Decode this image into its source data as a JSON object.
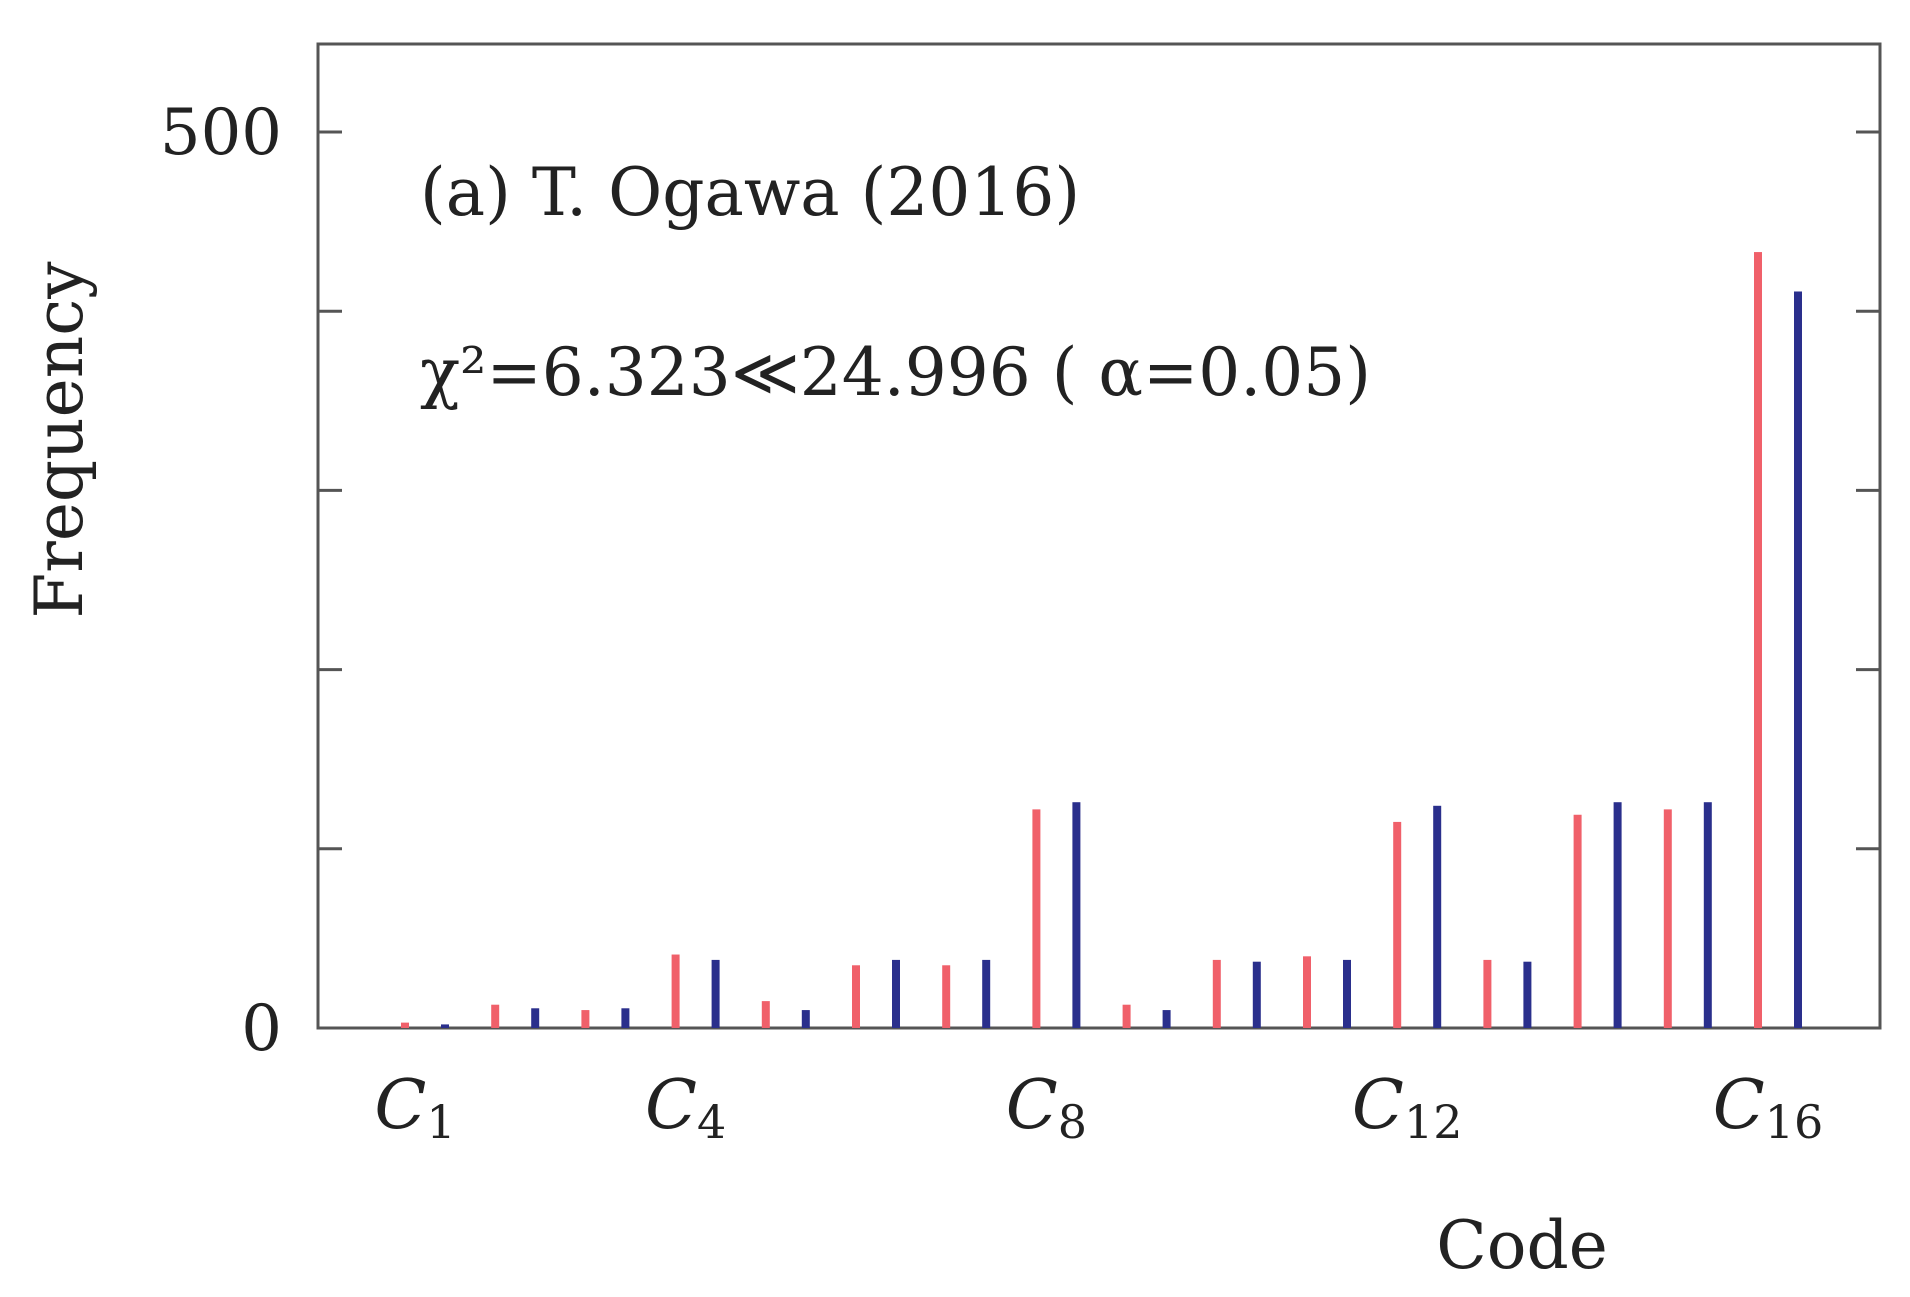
{
  "chart_data": {
    "type": "bar",
    "annotation_title": "(a) T. Ogawa (2016)",
    "annotation_stat": "χ²=6.323≪24.996 ( α=0.05)",
    "xlabel": "Code",
    "ylabel": "Frequency",
    "ylim": [
      0,
      500
    ],
    "ytick_labels": [
      "500",
      "0"
    ],
    "ytick_positions": [
      0,
      100,
      200,
      300,
      400,
      500
    ],
    "categories": [
      "C1",
      "C2",
      "C3",
      "C4",
      "C5",
      "C6",
      "C7",
      "C8",
      "C9",
      "C10",
      "C11",
      "C12",
      "C13",
      "C14",
      "C15",
      "C16"
    ],
    "xtick_labels": [
      {
        "category": "C1",
        "base": "C",
        "sub": "1"
      },
      {
        "category": "C4",
        "base": "C",
        "sub": "4"
      },
      {
        "category": "C8",
        "base": "C",
        "sub": "8"
      },
      {
        "category": "C12",
        "base": "C",
        "sub": "12"
      },
      {
        "category": "C16",
        "base": "C",
        "sub": "16"
      }
    ],
    "series": [
      {
        "color": "#f0606a",
        "values": [
          3,
          13,
          10,
          41,
          15,
          35,
          35,
          122,
          13,
          38,
          40,
          115,
          38,
          119,
          122,
          433
        ]
      },
      {
        "color": "#2a2f8c",
        "values": [
          2,
          11,
          11,
          38,
          10,
          38,
          38,
          126,
          10,
          37,
          38,
          124,
          37,
          126,
          126,
          411
        ]
      }
    ]
  }
}
